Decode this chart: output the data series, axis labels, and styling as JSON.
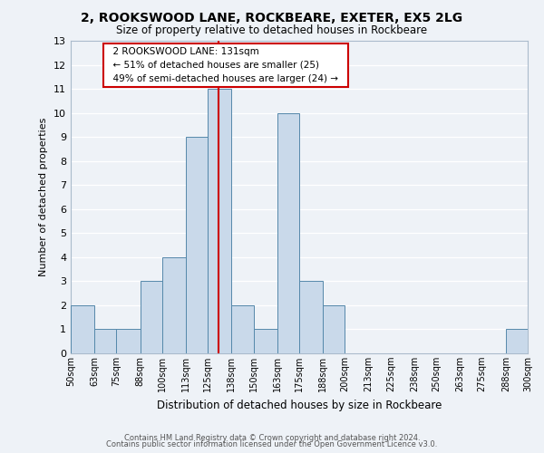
{
  "title": "2, ROOKSWOOD LANE, ROCKBEARE, EXETER, EX5 2LG",
  "subtitle": "Size of property relative to detached houses in Rockbeare",
  "xlabel": "Distribution of detached houses by size in Rockbeare",
  "ylabel": "Number of detached properties",
  "bin_labels": [
    "50sqm",
    "63sqm",
    "75sqm",
    "88sqm",
    "100sqm",
    "113sqm",
    "125sqm",
    "138sqm",
    "150sqm",
    "163sqm",
    "175sqm",
    "188sqm",
    "200sqm",
    "213sqm",
    "225sqm",
    "238sqm",
    "250sqm",
    "263sqm",
    "275sqm",
    "288sqm",
    "300sqm"
  ],
  "bin_edges": [
    50,
    63,
    75,
    88,
    100,
    113,
    125,
    138,
    150,
    163,
    175,
    188,
    200,
    213,
    225,
    238,
    250,
    263,
    275,
    288,
    300
  ],
  "bar_heights": [
    2,
    1,
    1,
    3,
    4,
    9,
    11,
    2,
    1,
    10,
    3,
    2,
    0,
    0,
    0,
    0,
    0,
    0,
    0,
    1,
    0
  ],
  "bar_color": "#c9d9ea",
  "bar_edge_color": "#5588aa",
  "vline_x": 131,
  "vline_color": "#cc0000",
  "annotation_title": "2 ROOKSWOOD LANE: 131sqm",
  "annotation_line1": "← 51% of detached houses are smaller (25)",
  "annotation_line2": "49% of semi-detached houses are larger (24) →",
  "annotation_box_color": "#ffffff",
  "annotation_box_edge": "#cc0000",
  "ylim": [
    0,
    13
  ],
  "yticks": [
    0,
    1,
    2,
    3,
    4,
    5,
    6,
    7,
    8,
    9,
    10,
    11,
    12,
    13
  ],
  "bg_color": "#eef2f7",
  "grid_color": "#ffffff",
  "footer1": "Contains HM Land Registry data © Crown copyright and database right 2024.",
  "footer2": "Contains public sector information licensed under the Open Government Licence v3.0."
}
